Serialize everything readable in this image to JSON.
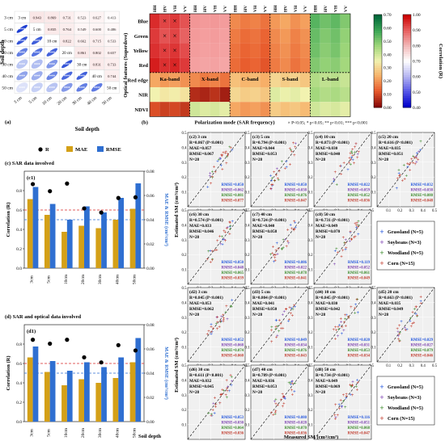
{
  "panel_a": {
    "label": "(a)",
    "depths": [
      "3 cm",
      "5 cm",
      "10 cm",
      "20 cm",
      "30 cm",
      "40 cm",
      "50 cm"
    ],
    "ylabel": "Soil depth",
    "xlabel": "Soil depth",
    "upper_values": [
      [
        null,
        0.943,
        0.869,
        0.731,
        0.523,
        0.627,
        0.413
      ],
      [
        null,
        null,
        0.835,
        0.764,
        0.549,
        0.6,
        0.486
      ],
      [
        null,
        null,
        null,
        0.822,
        0.662,
        0.715,
        0.533
      ],
      [
        null,
        null,
        null,
        null,
        0.861,
        0.802,
        0.657
      ],
      [
        null,
        null,
        null,
        null,
        null,
        0.831,
        0.733
      ],
      [
        null,
        null,
        null,
        null,
        null,
        null,
        0.744
      ],
      [
        null,
        null,
        null,
        null,
        null,
        null,
        null
      ]
    ],
    "lower_marks": [
      [
        "",
        "",
        "",
        "",
        "",
        "",
        ""
      ],
      [
        "***",
        "",
        "",
        "",
        "",
        "",
        ""
      ],
      [
        "***",
        "***",
        "",
        "",
        "",
        "",
        ""
      ],
      [
        "***",
        "***",
        "***",
        "",
        "",
        "",
        ""
      ],
      [
        "***",
        "***",
        "***",
        "***",
        "",
        "",
        ""
      ],
      [
        "***",
        "***",
        "***",
        "***",
        "***",
        "",
        ""
      ],
      [
        "***",
        "***",
        "***",
        "***",
        "***",
        "***",
        ""
      ]
    ]
  },
  "panel_b": {
    "label": "(b)",
    "ylabel": "Optical features (Superdove)",
    "xlabel": "Polarization mode (SAR frequency)",
    "rows": [
      "Blue",
      "Green",
      "Yellow",
      "Red",
      "Red edge",
      "NIR",
      "NDVI"
    ],
    "pol_labels": [
      "HH",
      "HV",
      "VH",
      "VV"
    ],
    "bands": [
      "Ka-band",
      "X-band",
      "C-band",
      "S-band",
      "L-band"
    ],
    "note": "× P<0.05; * p<0.05; ** p<0.01; *** p<0.001",
    "colorbar_left": {
      "ticks": [
        "0.70",
        "0.60",
        "0.50",
        "0.40",
        "0.30",
        "0.20",
        "0.10",
        "0.00"
      ],
      "colors": [
        "#00663a",
        "#3aa655",
        "#9fd67a",
        "#f2f2b0",
        "#f7b26a",
        "#e85a2c",
        "#8a0a0a"
      ]
    },
    "colorbar_right": {
      "ticks": [
        "1.00",
        "0.90",
        "0.80",
        "0.70",
        "0.60",
        "0.50",
        "0.40"
      ],
      "colors": [
        "#cc0000",
        "#e86060",
        "#f2b8b8",
        "#ffffff",
        "#b8b8f2",
        "#5a5ae8",
        "#0000cc"
      ]
    },
    "colorbar_label": "Correlation (R)"
  },
  "panel_c": {
    "label": "(c) SAR data involved",
    "sublabel": "(c1)",
    "legend": [
      "R",
      "MAE",
      "RMSE"
    ],
    "colors": {
      "MAE": "#d4a017",
      "RMSE": "#2f6fd1",
      "R": "#000000"
    },
    "ylabel_left": "Correlation (R)",
    "ylabel_right": "MAE & RMSE (cm³/cm³)",
    "chart_data": {
      "type": "bar",
      "categories": [
        "3cm",
        "5cm",
        "10cm",
        "20cm",
        "30cm",
        "40cm",
        "50cm"
      ],
      "series": [
        {
          "name": "MAE",
          "values": [
            0.057,
            0.044,
            0.03,
            0.035,
            0.033,
            0.04,
            0.049
          ]
        },
        {
          "name": "RMSE",
          "values": [
            0.067,
            0.053,
            0.04,
            0.051,
            0.046,
            0.058,
            0.07
          ]
        },
        {
          "name": "R",
          "values": [
            0.867,
            0.794,
            0.873,
            0.616,
            0.574,
            0.724,
            0.731
          ]
        }
      ],
      "ylim_left": [
        0,
        1.0
      ],
      "ylim_right": [
        0,
        0.08
      ],
      "yticks_left": [
        "0.0",
        "0.2",
        "0.4",
        "0.6",
        "0.8"
      ],
      "yticks_right": [
        "0.00",
        "0.02",
        "0.04",
        "0.06",
        "0.08"
      ]
    }
  },
  "panel_d": {
    "label": "(d) SAR and optical data involved",
    "sublabel": "(d1)",
    "xlabel": "Soil depth",
    "chart_data": {
      "type": "bar",
      "categories": [
        "3cm",
        "5cm",
        "10cm",
        "20cm",
        "30cm",
        "40cm",
        "50cm"
      ],
      "series": [
        {
          "name": "MAE",
          "values": [
            0.053,
            0.041,
            0.03,
            0.035,
            0.032,
            0.036,
            0.049
          ]
        },
        {
          "name": "RMSE",
          "values": [
            0.062,
            0.05,
            0.042,
            0.049,
            0.045,
            0.053,
            0.069
          ]
        },
        {
          "name": "R",
          "values": [
            0.845,
            0.804,
            0.845,
            0.663,
            0.611,
            0.789,
            0.734
          ]
        }
      ],
      "ylim_left": [
        0,
        1.0
      ],
      "ylim_right": [
        0,
        0.08
      ],
      "yticks_left": [
        "0.0",
        "0.2",
        "0.4",
        "0.6",
        "0.8"
      ],
      "yticks_right": [
        "0.00",
        "0.02",
        "0.04",
        "0.06",
        "0.08"
      ]
    }
  },
  "scatter": {
    "ylabel": "Estimated SM (cm³/cm³)",
    "xlabel": "Measured SM (cm³/cm³)",
    "ticks": [
      "0.1",
      "0.2",
      "0.3",
      "0.4",
      "0.5"
    ],
    "legend": [
      {
        "name": "Grassland (N=5)",
        "color": "#2255dd"
      },
      {
        "name": "Soybeans (N=3)",
        "color": "#7b3fb0"
      },
      {
        "name": "Woodland (N=5)",
        "color": "#3a8a2a"
      },
      {
        "name": "Corn (N=15)",
        "color": "#c0392b"
      }
    ],
    "panels": [
      {
        "id": "(c2) 3 cm",
        "r": "R=0.867 (P<0.001)",
        "mae": "MAE=0.057",
        "rmse": "RMSE=0.067",
        "n": "N=28",
        "sub": [
          "RMSE=0.050",
          "RMSE=0.062",
          "RMSE=0.081",
          "RMSE=0.077"
        ]
      },
      {
        "id": "(c3) 5 cm",
        "r": "R=0.794 (P<0.001)",
        "mae": "MAE=0.044",
        "rmse": "RMSE=0.053",
        "n": "N=28",
        "sub": [
          "RMSE=0.050",
          "RMSE=0.038",
          "RMSE=0.076",
          "RMSE=0.047"
        ]
      },
      {
        "id": "(c4) 10 cm",
        "r": "R=0.873 (P<0.001)",
        "mae": "MAE=0.030",
        "rmse": "RMSE=0.040",
        "n": "N=28",
        "sub": [
          "RMSE=0.022",
          "RMSE=0.059",
          "RMSE=0.052",
          "RMSE=0.036"
        ]
      },
      {
        "id": "(c5) 20 cm",
        "r": "R=0.616 (P<0.001)",
        "mae": "MAE=0.035",
        "rmse": "RMSE=0.051",
        "n": "N=28",
        "sub": [
          "RMSE=0.032",
          "RMSE=0.038",
          "RMSE=0.080",
          "RMSE=0.048"
        ]
      },
      {
        "id": "(c6) 30 cm",
        "r": "R=0.574 (P<0.001)",
        "mae": "MAE=0.033",
        "rmse": "RMSE=0.046",
        "n": "N=28",
        "sub": [
          "RMSE=0.050",
          "RMSE=0.048",
          "RMSE=0.065",
          "RMSE=0.039"
        ]
      },
      {
        "id": "(c7) 40 cm",
        "r": "R=0.724 (P<0.001)",
        "mae": "MAE=0.040",
        "rmse": "RMSE=0.058",
        "n": "N=28",
        "sub": [
          "RMSE=0.086",
          "RMSE=0.022",
          "RMSE=0.078",
          "RMSE=0.041"
        ]
      },
      {
        "id": "(c8) 50 cm",
        "r": "R=0.731 (P<0.001)",
        "mae": "MAE=0.049",
        "rmse": "RMSE=0.070",
        "n": "N=28",
        "sub": [
          "RMSE=0.119",
          "RMSE=0.052",
          "RMSE=0.061",
          "RMSE=0.049"
        ]
      },
      {
        "id": "(d2) 3 cm",
        "r": "R=0.845 (P<0.001)",
        "mae": "MAE=0.053",
        "rmse": "RMSE=0.062",
        "n": "N=28",
        "sub": [
          "RMSE=0.052",
          "RMSE=0.068",
          "RMSE=0.074",
          "RMSE=0.060"
        ]
      },
      {
        "id": "(d3) 5 cm",
        "r": "R=0.804 (P<0.001)",
        "mae": "MAE=0.041",
        "rmse": "RMSE=0.050",
        "n": "N=28",
        "sub": [
          "RMSE=0.049",
          "RMSE=0.034",
          "RMSE=0.076",
          "RMSE=0.043"
        ]
      },
      {
        "id": "(d4) 10 cm",
        "r": "R=0.845 (P<0.001)",
        "mae": "MAE=0.030",
        "rmse": "RMSE=0.042",
        "n": "N=28",
        "sub": [
          "RMSE=0.020",
          "RMSE=0.031",
          "RMSE=0.053",
          "RMSE=0.034"
        ]
      },
      {
        "id": "(d5) 20 cm",
        "r": "R=0.663 (P<0.001)",
        "mae": "MAE=0.035",
        "rmse": "RMSE=0.049",
        "n": "N=28",
        "sub": [
          "RMSE=0.029",
          "RMSE=0.027",
          "RMSE=0.079",
          "RMSE=0.046"
        ]
      },
      {
        "id": "(d6) 30 cm",
        "r": "R=0.611 (P<0.001)",
        "mae": "MAE=0.032",
        "rmse": "RMSE=0.045",
        "n": "N=28",
        "sub": [
          "RMSE=0.053",
          "RMSE=0.030",
          "RMSE=0.064",
          "RMSE=0.036"
        ]
      },
      {
        "id": "(d7) 40 cm",
        "r": "R=0.789 (P<0.001)",
        "mae": "MAE=0.036",
        "rmse": "RMSE=0.053",
        "n": "N=28",
        "sub": [
          "RMSE=0.080",
          "RMSE=0.028",
          "RMSE=0.070",
          "RMSE=0.036"
        ]
      },
      {
        "id": "(d8) 50 cm",
        "r": "R=0.734 (P<0.001)",
        "mae": "MAE=0.049",
        "rmse": "RMSE=0.069",
        "n": "N=28",
        "sub": [
          "RMSE=0.116",
          "RMSE=0.051",
          "RMSE=0.068",
          "RMSE=0.047"
        ]
      }
    ]
  }
}
